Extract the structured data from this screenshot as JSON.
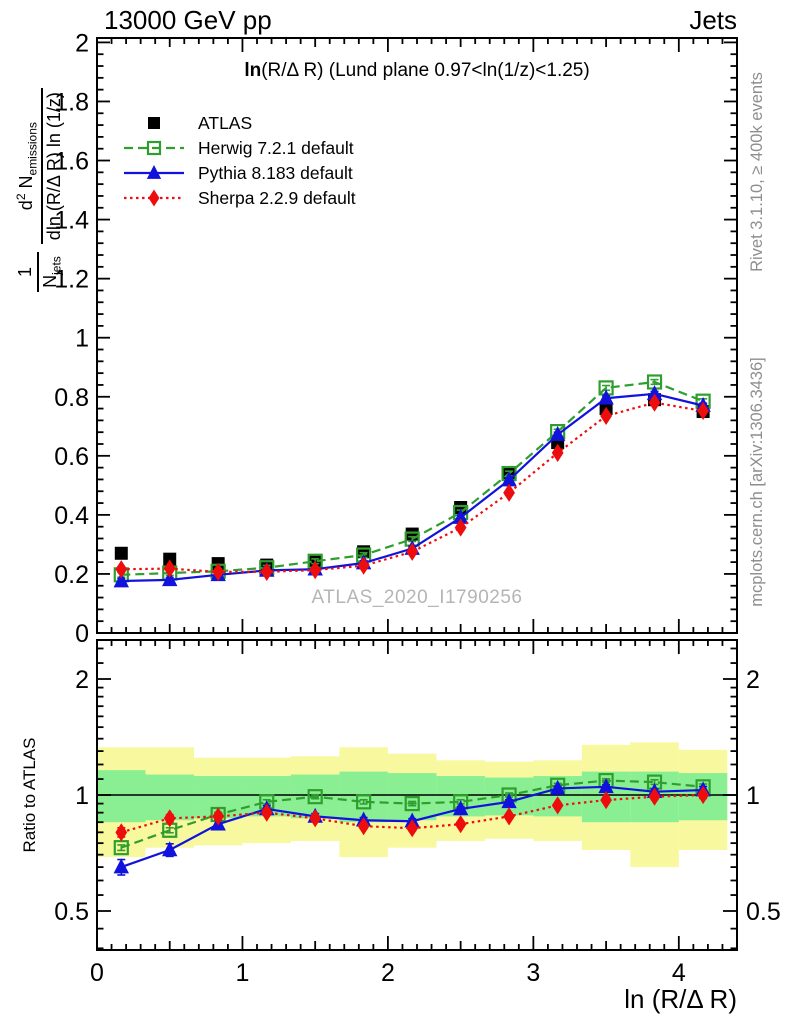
{
  "header": {
    "left": "13000 GeV pp",
    "right": "Jets"
  },
  "side": {
    "rivet": "Rivet 3.1.10, ≥ 400k events",
    "mcplots": "mcplots.cern.ch [arXiv:1306.3436]"
  },
  "plot": {
    "title_lead": "ln",
    "title_rest": "(R/Δ R) (Lund plane 0.97<ln(1/z)<1.25)",
    "watermark": "ATLAS_2020_I1790256",
    "ylabel": {
      "frac1_num": "1",
      "frac1_den_base": "N",
      "frac1_den_sub": "jets",
      "frac2_num_d": "d",
      "frac2_num_sup": "2",
      "frac2_num_base": " N",
      "frac2_num_sub": "emissions",
      "frac2_den": "dln (R/Δ R) ln (1/z)"
    }
  },
  "chart_data": {
    "type": "line",
    "title": "ln(R/Δ R) (Lund plane 0.97<ln(1/z)<1.25)",
    "xlabel": "ln (R/Δ R)",
    "ylabel": "1/N_jets d²N_emissions / dln(R/Δ R) ln(1/z)",
    "xlim": [
      0,
      4.4
    ],
    "ylim_main": [
      0,
      2.013
    ],
    "ylim_ratio": [
      0.4,
      2.52
    ],
    "ratio_log_scale": true,
    "grid": false,
    "legend_position": "top-left",
    "x": [
      0.167,
      0.5,
      0.833,
      1.167,
      1.5,
      1.833,
      2.167,
      2.5,
      2.833,
      3.167,
      3.5,
      3.833,
      4.167
    ],
    "bin_width": 0.333,
    "series": [
      {
        "name": "ATLAS",
        "color": "#000000",
        "marker": "square",
        "line": "none",
        "msize": 13,
        "values": [
          0.27,
          0.25,
          0.235,
          0.23,
          0.245,
          0.275,
          0.335,
          0.425,
          0.54,
          0.645,
          0.76,
          0.79,
          0.75
        ],
        "err": 0.012
      },
      {
        "name": "Herwig 7.2.1 default",
        "color": "#2f9e2f",
        "marker": "square-open",
        "line": "dashed",
        "msize": 13,
        "values": [
          0.197,
          0.203,
          0.209,
          0.221,
          0.243,
          0.264,
          0.318,
          0.408,
          0.54,
          0.682,
          0.83,
          0.85,
          0.785
        ],
        "err": 0.008
      },
      {
        "name": "Pythia 8.183 default",
        "color": "#1212dd",
        "marker": "triangle",
        "line": "solid",
        "msize": 14,
        "values": [
          0.176,
          0.18,
          0.197,
          0.212,
          0.216,
          0.237,
          0.286,
          0.391,
          0.518,
          0.672,
          0.795,
          0.81,
          0.77
        ],
        "err": 0.008
      },
      {
        "name": "Sherpa 2.2.9 default",
        "color": "#ee0d0d",
        "marker": "diamond",
        "line": "dotted",
        "msize": 14,
        "values": [
          0.216,
          0.218,
          0.207,
          0.207,
          0.213,
          0.228,
          0.275,
          0.357,
          0.475,
          0.61,
          0.735,
          0.78,
          0.752
        ],
        "err": 0.008
      }
    ],
    "ratio": {
      "label": "Ratio to ATLAS",
      "reference": 1,
      "series": [
        {
          "name": "Herwig 7.2.1 default",
          "values": [
            0.73,
            0.81,
            0.89,
            0.96,
            0.99,
            0.96,
            0.95,
            0.96,
            1.0,
            1.06,
            1.09,
            1.08,
            1.05
          ],
          "err": [
            0.012,
            0.012,
            0.012,
            0.012,
            0.012,
            0.012,
            0.012,
            0.012,
            0.012,
            0.012,
            0.012,
            0.015,
            0.018
          ]
        },
        {
          "name": "Pythia 8.183 default",
          "values": [
            0.65,
            0.72,
            0.84,
            0.92,
            0.88,
            0.86,
            0.855,
            0.92,
            0.96,
            1.04,
            1.05,
            1.02,
            1.03
          ],
          "err": [
            0.03,
            0.027,
            0.022,
            0.018,
            0.015,
            0.014,
            0.013,
            0.013,
            0.012,
            0.012,
            0.013,
            0.016,
            0.022
          ]
        },
        {
          "name": "Sherpa 2.2.9 default",
          "values": [
            0.8,
            0.87,
            0.88,
            0.9,
            0.87,
            0.83,
            0.82,
            0.84,
            0.88,
            0.94,
            0.97,
            0.99,
            1.0
          ],
          "err": [
            0.022,
            0.019,
            0.016,
            0.014,
            0.013,
            0.012,
            0.012,
            0.012,
            0.012,
            0.012,
            0.013,
            0.016,
            0.02
          ]
        }
      ],
      "bands": {
        "yellow": [
          [
            0.69,
            1.33
          ],
          [
            0.73,
            1.33
          ],
          [
            0.74,
            1.25
          ],
          [
            0.75,
            1.25
          ],
          [
            0.76,
            1.26
          ],
          [
            0.69,
            1.33
          ],
          [
            0.73,
            1.28
          ],
          [
            0.76,
            1.23
          ],
          [
            0.77,
            1.22
          ],
          [
            0.76,
            1.23
          ],
          [
            0.72,
            1.35
          ],
          [
            0.65,
            1.37
          ],
          [
            0.72,
            1.31
          ]
        ],
        "green": [
          [
            0.85,
            1.16
          ],
          [
            0.86,
            1.13
          ],
          [
            0.87,
            1.12
          ],
          [
            0.88,
            1.12
          ],
          [
            0.87,
            1.13
          ],
          [
            0.85,
            1.15
          ],
          [
            0.86,
            1.14
          ],
          [
            0.88,
            1.12
          ],
          [
            0.885,
            1.11
          ],
          [
            0.88,
            1.12
          ],
          [
            0.85,
            1.15
          ],
          [
            0.85,
            1.15
          ],
          [
            0.86,
            1.14
          ]
        ]
      },
      "band_colors": {
        "yellow": "#f8f89e",
        "green": "#8aef92"
      }
    },
    "xticks": {
      "values": [
        0,
        1,
        2,
        3,
        4
      ],
      "labels": [
        "0",
        "1",
        "2",
        "3",
        "4"
      ]
    },
    "yticks_main": {
      "values": [
        0,
        0.2,
        0.4,
        0.6,
        0.8,
        1,
        1.2,
        1.4,
        1.6,
        1.8,
        2
      ],
      "labels": [
        "0",
        "0.2",
        "0.4",
        "0.6",
        "0.8",
        "1",
        "1.2",
        "1.4",
        "1.6",
        "1.8",
        "2"
      ]
    },
    "yticks_ratio": {
      "values": [
        0.5,
        1,
        2
      ],
      "labels": [
        "0.5",
        "1",
        "2"
      ],
      "minor": [
        0.4,
        0.45,
        0.5,
        0.55,
        0.6,
        0.65,
        0.7,
        0.75,
        0.8,
        0.85,
        0.9,
        0.95,
        1,
        1.1,
        1.2,
        1.3,
        1.4,
        1.5,
        1.6,
        1.7,
        1.8,
        1.9,
        2,
        2.2,
        2.4
      ]
    }
  }
}
